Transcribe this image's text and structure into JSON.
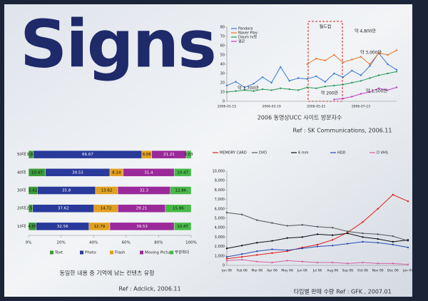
{
  "slide_title": "Signs",
  "chart_data": [
    {
      "type": "line",
      "caption": "2006 동영상UCC 사이트 방문자수",
      "source": "Ref : SK Communications, 2006.11",
      "categories": [
        "2006-01-15",
        null,
        null,
        null,
        null,
        "2006-03-19",
        null,
        null,
        null,
        null,
        "2006-05-21",
        null,
        null,
        null,
        null,
        "2006-07-23",
        null,
        null,
        null,
        null
      ],
      "ylim": [
        0,
        80
      ],
      "yticks": [
        0,
        10,
        20,
        30,
        40,
        50,
        60,
        70,
        80
      ],
      "legend": "upper-left",
      "series": [
        {
          "name": "Pandora",
          "color": "#3a78d8",
          "values": [
            17,
            21,
            15,
            19,
            26,
            20,
            37,
            22,
            25,
            24,
            27,
            21,
            30,
            26,
            33,
            28,
            38,
            52,
            40,
            34
          ]
        },
        {
          "name": "Naver Play",
          "color": "#e8782a",
          "values": [
            null,
            null,
            null,
            null,
            null,
            null,
            null,
            null,
            null,
            40,
            46,
            44,
            50,
            42,
            45,
            48,
            40,
            52,
            50,
            55
          ]
        },
        {
          "name": "Daum tv팟",
          "color": "#2a9a5a",
          "values": [
            10,
            11,
            12,
            11,
            13,
            12,
            14,
            13,
            12,
            15,
            14,
            16,
            17,
            18,
            20,
            22,
            25,
            28,
            30,
            32
          ]
        },
        {
          "name": "엠군",
          "color": "#c040c0",
          "values": [
            null,
            null,
            null,
            null,
            null,
            null,
            null,
            null,
            null,
            null,
            null,
            null,
            2,
            3,
            5,
            8,
            10,
            14,
            12,
            15
          ]
        }
      ],
      "annotations": [
        "월드컵",
        "약 1,700만",
        "약 4,800만",
        "약 3,000만",
        "약 200만",
        "약 1,500만"
      ]
    },
    {
      "type": "hbar-stacked",
      "caption": "동일한 내용 중 기억에 남는 컨텐츠 유형",
      "source": "Ref : Adclick, 2006.11",
      "categories": [
        "50대",
        "40대",
        "30대",
        "20대",
        "10대"
      ],
      "xlim": [
        0,
        100
      ],
      "xticks": [
        {
          "value": 0,
          "label": "0%"
        },
        {
          "value": 20,
          "label": "20%"
        },
        {
          "value": 40,
          "label": "40%"
        },
        {
          "value": 60,
          "label": "60%"
        },
        {
          "value": 80,
          "label": "80%"
        },
        {
          "value": 100,
          "label": "100%"
        }
      ],
      "legend": "bottom",
      "series": [
        {
          "name": "Text",
          "color": "#3a9a3a",
          "values": [
            3.03,
            10.47,
            5.42,
            2.59,
            4.65
          ]
        },
        {
          "name": "Photo",
          "color": "#2a3a9a",
          "values": [
            66.67,
            39.53,
            35.8,
            37.62,
            32.56
          ]
        },
        {
          "name": "Flash",
          "color": "#e0a020",
          "values": [
            6.06,
            8.14,
            13.62,
            14.72,
            12.79
          ]
        },
        {
          "name": "Moving Picture",
          "color": "#9a2a9a",
          "values": [
            21.21,
            31.4,
            32.3,
            29.21,
            39.53
          ]
        },
        {
          "name": "무관하다",
          "color": "#48b848",
          "values": [
            3.03,
            10.47,
            12.86,
            15.86,
            10.47
          ]
        }
      ]
    },
    {
      "type": "line",
      "caption": "타입별 판매 수량",
      "source": "Ref : GFK , 2007.01",
      "categories": [
        "Jan 06",
        "Feb 06",
        "Mar 06",
        "Apr 06",
        "May 06",
        "Jun 06",
        "Jul 06",
        "Aug 06",
        "Sep 06",
        "Oct 06",
        "Nov 06",
        "Dec 06",
        "Jan 07"
      ],
      "ylim": [
        0,
        10000
      ],
      "yticks": [
        0,
        {
          "value": 1000,
          "label": "1,000"
        },
        {
          "value": 2000,
          "label": "2,000"
        },
        {
          "value": 3000,
          "label": "3,000"
        },
        {
          "value": 4000,
          "label": "4,000"
        },
        {
          "value": 5000,
          "label": "5,000"
        },
        {
          "value": 6000,
          "label": "6,000"
        },
        {
          "value": 7000,
          "label": "7,000"
        },
        {
          "value": 8000,
          "label": "8,000"
        },
        {
          "value": 9000,
          "label": "9,000"
        },
        {
          "value": 10000,
          "label": "10,000"
        }
      ],
      "legend": "top",
      "series": [
        {
          "name": "MEMORY CARD",
          "color": "#e02020",
          "values": [
            700,
            900,
            1100,
            1300,
            1500,
            1900,
            2200,
            2700,
            3500,
            4600,
            6000,
            7500,
            6800
          ]
        },
        {
          "name": "DVD",
          "color": "#555555",
          "values": [
            5600,
            5400,
            4800,
            4500,
            4200,
            4300,
            4100,
            4000,
            3600,
            3400,
            3300,
            3100,
            2600
          ]
        },
        {
          "name": "6 mm",
          "color": "#111111",
          "values": [
            1800,
            2100,
            2400,
            2600,
            2900,
            3000,
            3300,
            3200,
            3400,
            3000,
            2800,
            2500,
            2700
          ]
        },
        {
          "name": "HDD",
          "color": "#2a4ab0",
          "values": [
            900,
            1200,
            1500,
            1700,
            1600,
            1800,
            2000,
            2100,
            2300,
            2500,
            2400,
            2200,
            1900
          ]
        },
        {
          "name": "D VHS",
          "color": "#d060a0",
          "values": [
            500,
            600,
            400,
            300,
            500,
            400,
            300,
            300,
            200,
            300,
            200,
            200,
            100
          ]
        }
      ]
    }
  ]
}
